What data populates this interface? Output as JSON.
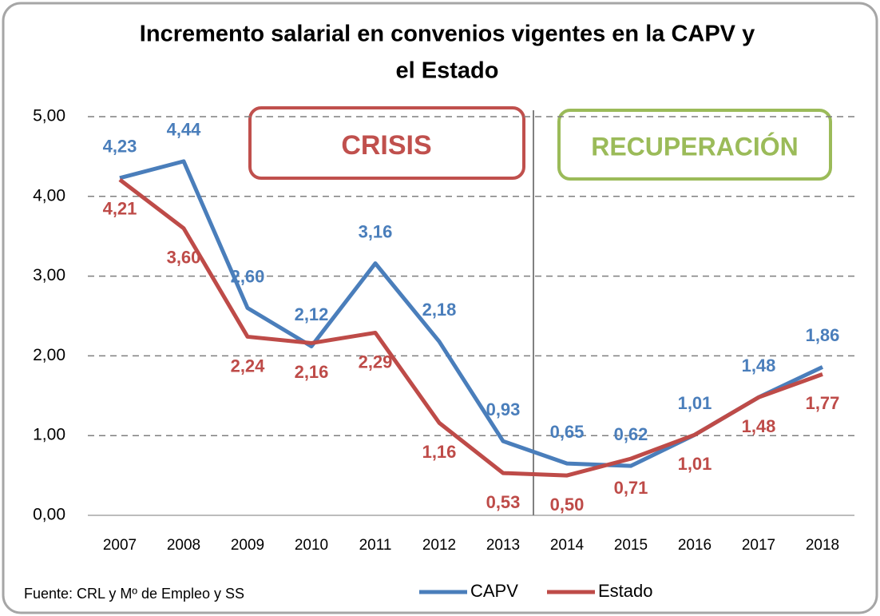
{
  "chart_data": {
    "type": "line",
    "title": [
      "Incremento salarial en convenios vigentes en la CAPV y",
      "el Estado"
    ],
    "categories": [
      "2007",
      "2008",
      "2009",
      "2010",
      "2011",
      "2012",
      "2013",
      "2014",
      "2015",
      "2016",
      "2017",
      "2018"
    ],
    "series": [
      {
        "name": "CAPV",
        "color": "#4a7ebb",
        "values": [
          4.23,
          4.44,
          2.6,
          2.12,
          3.16,
          2.18,
          0.93,
          0.65,
          0.62,
          1.01,
          1.48,
          1.86
        ],
        "value_labels": [
          "4,23",
          "4,44",
          "2,60",
          "2,12",
          "3,16",
          "2,18",
          "0,93",
          "0,65",
          "0,62",
          "1,01",
          "1,48",
          "1,86"
        ]
      },
      {
        "name": "Estado",
        "color": "#be4b48",
        "values": [
          4.21,
          3.6,
          2.24,
          2.16,
          2.29,
          1.16,
          0.53,
          0.5,
          0.71,
          1.01,
          1.48,
          1.77
        ],
        "value_labels": [
          "4,21",
          "3,60",
          "2,24",
          "2,16",
          "2,29",
          "1,16",
          "0,53",
          "0,50",
          "0,71",
          "1,01",
          "1,48",
          "1,77"
        ]
      }
    ],
    "ylim": [
      0,
      5
    ],
    "yticks": [
      {
        "value": 0,
        "label": "0,00"
      },
      {
        "value": 1,
        "label": "1,00"
      },
      {
        "value": 2,
        "label": "2,00"
      },
      {
        "value": 3,
        "label": "3,00"
      },
      {
        "value": 4,
        "label": "4,00"
      },
      {
        "value": 5,
        "label": "5,00"
      }
    ],
    "grid": true,
    "annotations": [
      "CRISIS",
      "RECUPERACIÓN"
    ],
    "source": "Fuente: CRL y Mº de Empleo y SS",
    "legend": "bottom"
  }
}
